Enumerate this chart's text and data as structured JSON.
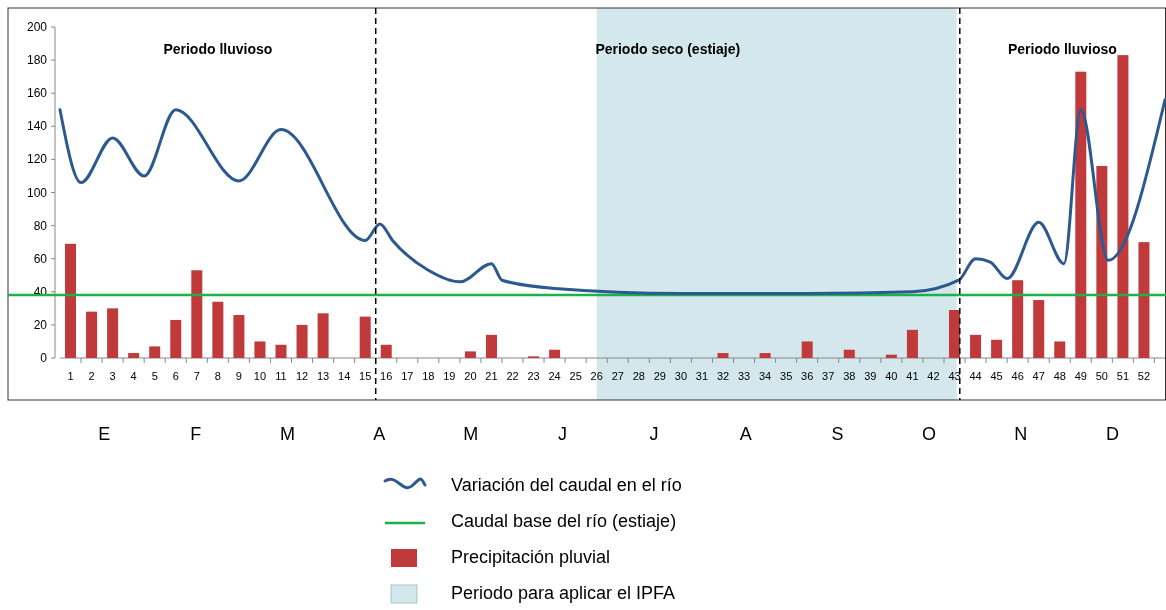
{
  "chart_data": {
    "type": "bar",
    "annotations": [
      "Periodo lluvioso",
      "Periodo seco (estiaje)",
      "Periodo lluvioso",
      "E",
      "F",
      "M",
      "A",
      "M",
      "J",
      "J",
      "A",
      "S",
      "O",
      "N",
      "D"
    ],
    "xlim": [
      0.5,
      53
    ],
    "xticks": [
      1,
      2,
      3,
      4,
      5,
      6,
      7,
      8,
      9,
      10,
      11,
      12,
      13,
      14,
      15,
      16,
      17,
      18,
      19,
      20,
      21,
      22,
      23,
      24,
      25,
      26,
      27,
      28,
      29,
      30,
      31,
      32,
      33,
      34,
      35,
      36,
      37,
      38,
      39,
      40,
      41,
      42,
      43,
      44,
      45,
      46,
      47,
      48,
      49,
      50,
      51,
      52
    ],
    "ylim": [
      0,
      200
    ],
    "yticks": [
      0,
      20,
      40,
      60,
      80,
      100,
      120,
      140,
      160,
      180,
      200
    ],
    "series": [
      {
        "name": "Precipitación pluvial",
        "color": "#c0393b",
        "x": [
          1,
          2,
          3,
          4,
          5,
          6,
          7,
          8,
          9,
          10,
          11,
          12,
          13,
          14,
          15,
          16,
          17,
          18,
          19,
          20,
          21,
          22,
          23,
          24,
          25,
          26,
          27,
          28,
          29,
          30,
          31,
          32,
          33,
          34,
          35,
          36,
          37,
          38,
          39,
          40,
          41,
          42,
          43,
          44,
          45,
          46,
          47,
          48,
          49,
          50,
          51,
          52
        ],
        "values": [
          69,
          28,
          30,
          3,
          7,
          23,
          53,
          34,
          26,
          10,
          8,
          20,
          27,
          0,
          25,
          8,
          0,
          0,
          0,
          4,
          14,
          0,
          1,
          5,
          0,
          0,
          0,
          0,
          0,
          0,
          0,
          3,
          0,
          3,
          0,
          10,
          0,
          5,
          0,
          2,
          17,
          0,
          29,
          14,
          11,
          47,
          35,
          10,
          173,
          116,
          183,
          70
        ]
      },
      {
        "type": "line",
        "name": "Variación del caudal en el río",
        "color": "#2d5a8e",
        "x": [
          0.5,
          1.5,
          3,
          4.5,
          6,
          9,
          11,
          15,
          15.7,
          16.3,
          18,
          19.5,
          21,
          21.5,
          24,
          30,
          36,
          41,
          43.2,
          44,
          44.7,
          45.5,
          47,
          48.2,
          49,
          50.3,
          53
        ],
        "values": [
          150,
          106,
          133,
          110,
          150,
          107,
          138,
          71,
          81,
          71,
          53,
          46,
          57,
          47,
          42,
          39,
          39,
          40,
          47,
          60,
          58,
          48,
          82,
          57,
          150,
          59,
          156
        ]
      }
    ],
    "ref_lines": [
      {
        "axis": "x",
        "value": 15.5,
        "color": "#000000",
        "line_style": "dashed"
      },
      {
        "axis": "x",
        "value": 43.25,
        "color": "#000000",
        "line_style": "dashed"
      },
      {
        "axis": "y",
        "value": 38,
        "label": "Caudal base del río (estiaje)",
        "color": "#1db14b"
      }
    ],
    "bands": [
      {
        "axis": "x",
        "from": 26,
        "to": 43.1,
        "label": "Periodo para aplicar el IPFA",
        "color": "#d4e7ec"
      }
    ],
    "legend": "bottom"
  }
}
